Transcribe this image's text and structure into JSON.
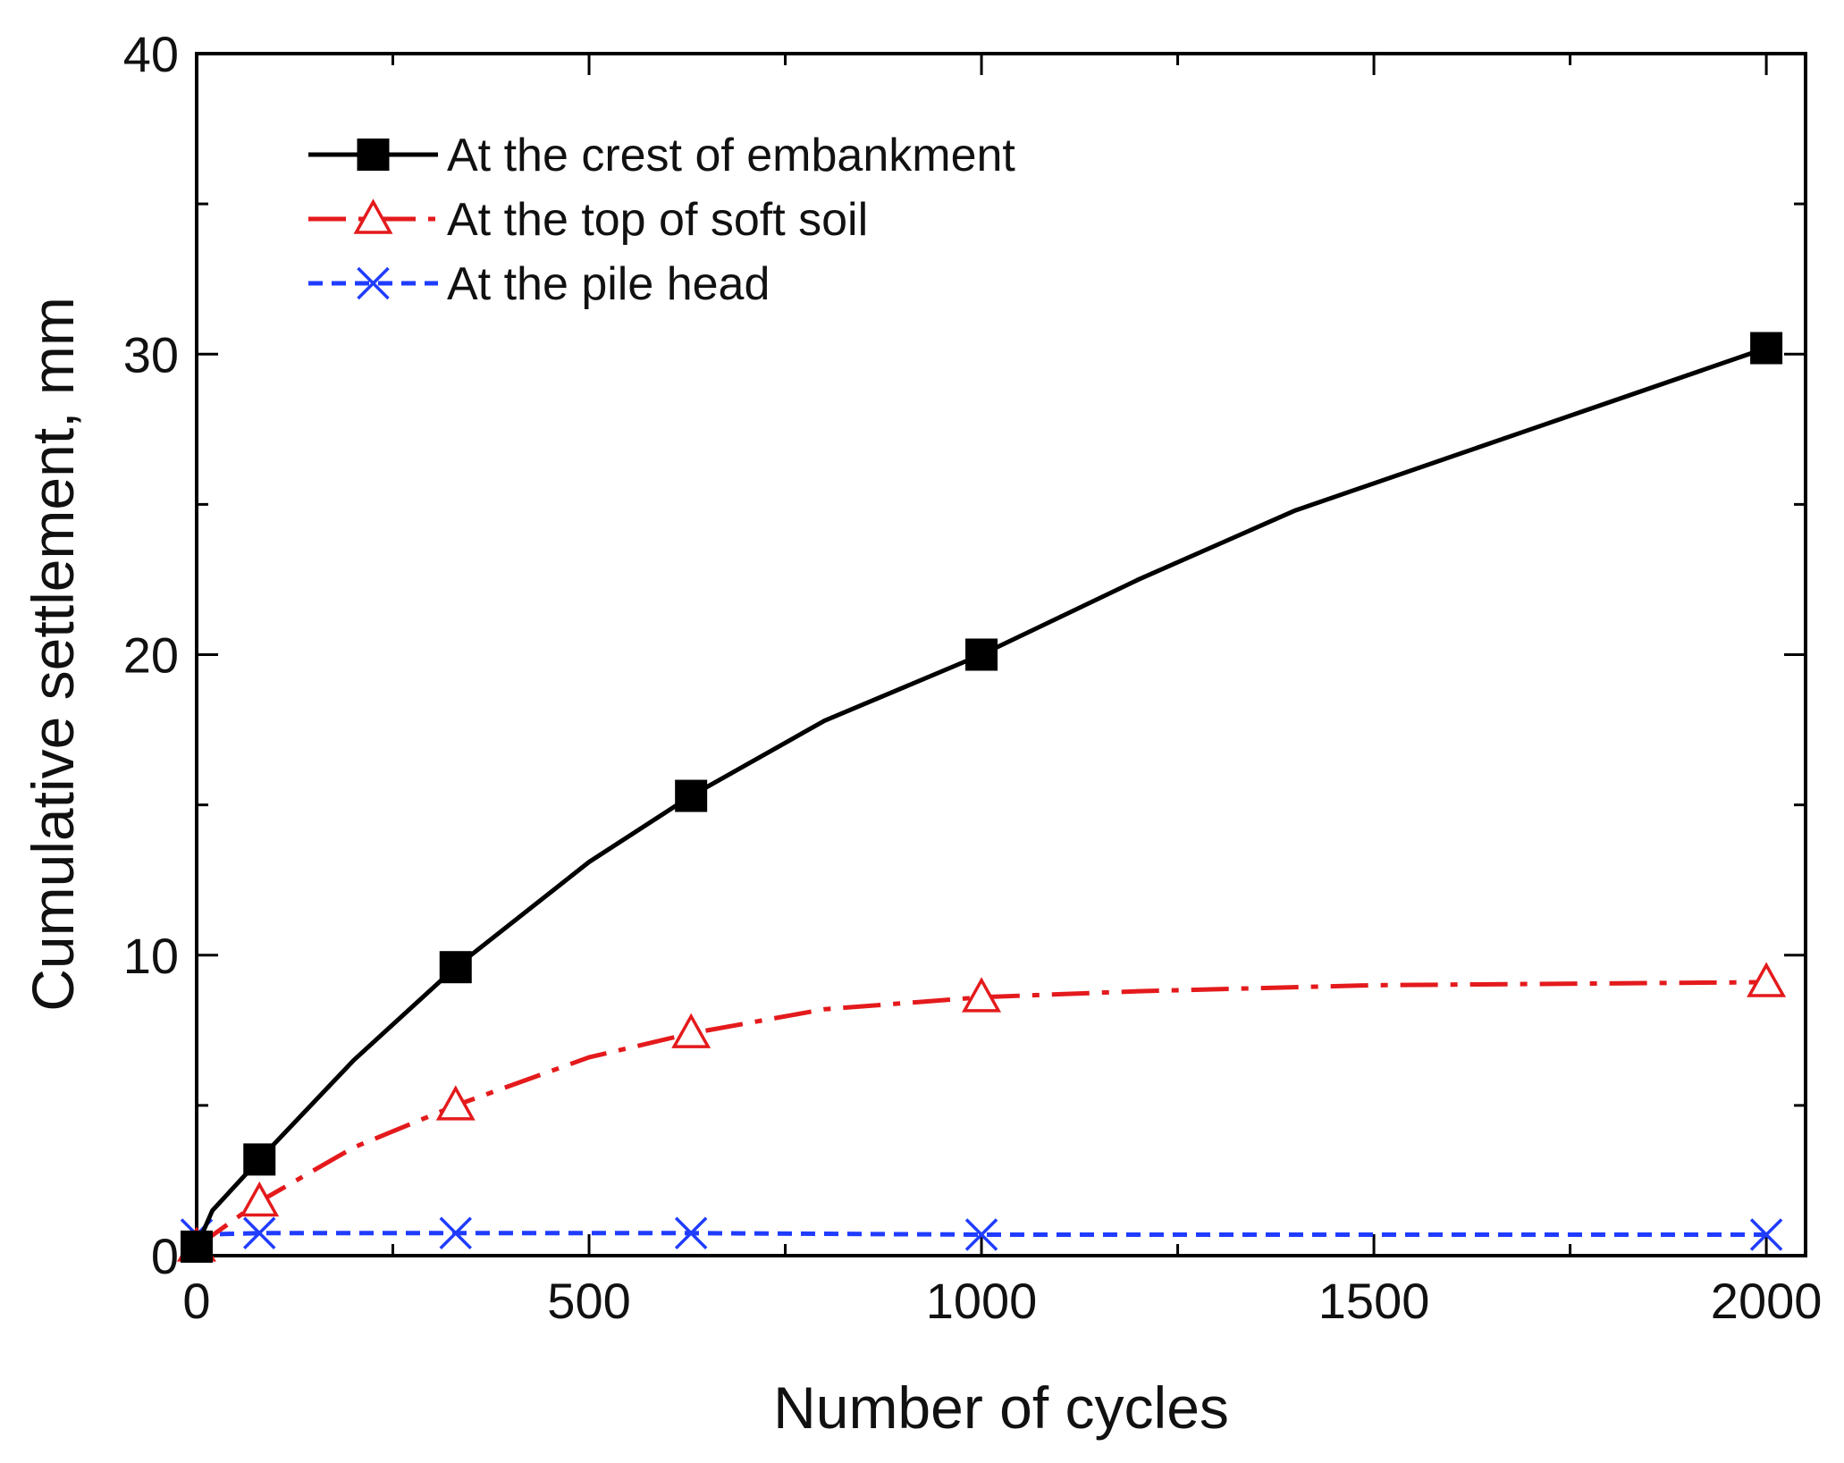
{
  "chart_data": {
    "type": "line",
    "title": "",
    "xlabel": "Number of cycles",
    "ylabel": "Cumulative settlement, mm",
    "xlim": [
      0,
      2050
    ],
    "ylim": [
      0,
      40
    ],
    "x_ticks": [
      0,
      500,
      1000,
      1500,
      2000
    ],
    "y_ticks": [
      0,
      10,
      20,
      30,
      40
    ],
    "x_tick_labels": [
      "0",
      "500",
      "1000",
      "1500",
      "2000"
    ],
    "y_tick_labels": [
      "0",
      "10",
      "20",
      "30",
      "40"
    ],
    "grid": false,
    "legend_position": "top-left",
    "series": [
      {
        "name": "At the crest of embankment",
        "color": "#000000",
        "line_style": "solid",
        "marker": "filled-square",
        "curve_x": [
          0,
          20,
          80,
          200,
          330,
          500,
          630,
          800,
          1000,
          1200,
          1400,
          1700,
          2000
        ],
        "curve_y": [
          0.3,
          1.5,
          3.2,
          6.5,
          9.6,
          13.1,
          15.3,
          17.8,
          20.0,
          22.5,
          24.8,
          27.5,
          30.2
        ],
        "marker_x": [
          0,
          80,
          330,
          630,
          1000,
          2000
        ],
        "marker_y": [
          0.3,
          3.2,
          9.6,
          15.3,
          20.0,
          30.2
        ]
      },
      {
        "name": "At the top of soft soil",
        "color": "#e41a1c",
        "line_style": "dash-dot",
        "marker": "open-triangle",
        "curve_x": [
          0,
          80,
          200,
          330,
          500,
          630,
          800,
          1000,
          1200,
          1500,
          2000
        ],
        "curve_y": [
          0.3,
          1.8,
          3.6,
          5.0,
          6.6,
          7.4,
          8.2,
          8.6,
          8.8,
          9.0,
          9.1
        ],
        "marker_x": [
          0,
          80,
          330,
          630,
          1000,
          2000
        ],
        "marker_y": [
          0.3,
          1.8,
          5.0,
          7.4,
          8.6,
          9.1
        ]
      },
      {
        "name": "At the pile head",
        "color": "#1f3cff",
        "line_style": "dotted",
        "marker": "x",
        "curve_x": [
          0,
          80,
          330,
          630,
          1000,
          2000
        ],
        "curve_y": [
          0.7,
          0.75,
          0.75,
          0.75,
          0.7,
          0.7
        ],
        "marker_x": [
          0,
          80,
          330,
          630,
          1000,
          2000
        ],
        "marker_y": [
          0.7,
          0.75,
          0.75,
          0.75,
          0.7,
          0.7
        ]
      }
    ]
  }
}
